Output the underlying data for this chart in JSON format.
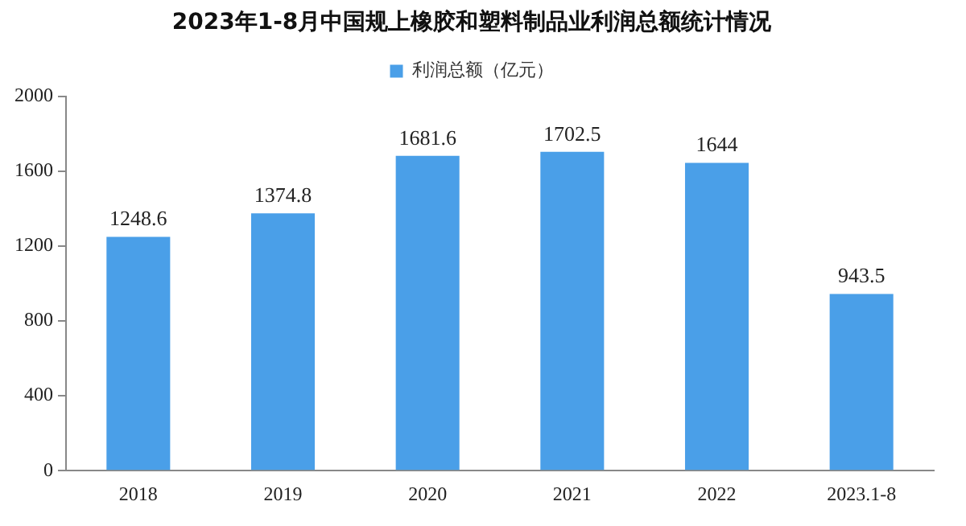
{
  "chart_data": {
    "type": "bar",
    "title": "2023年1-8月中国规上橡胶和塑料制品业利润总额统计情况",
    "categories": [
      "2018",
      "2019",
      "2020",
      "2021",
      "2022",
      "2023.1-8"
    ],
    "series": [
      {
        "name": "利润总额（亿元）",
        "color": "#4a9fe8",
        "values": [
          1248.6,
          1374.8,
          1681.6,
          1702.5,
          1644,
          943.5
        ]
      }
    ],
    "ylim": [
      0,
      2000
    ],
    "yticks": [
      0,
      400,
      800,
      1200,
      1600,
      2000
    ],
    "grid": false,
    "legend": "top",
    "data_labels": true
  }
}
